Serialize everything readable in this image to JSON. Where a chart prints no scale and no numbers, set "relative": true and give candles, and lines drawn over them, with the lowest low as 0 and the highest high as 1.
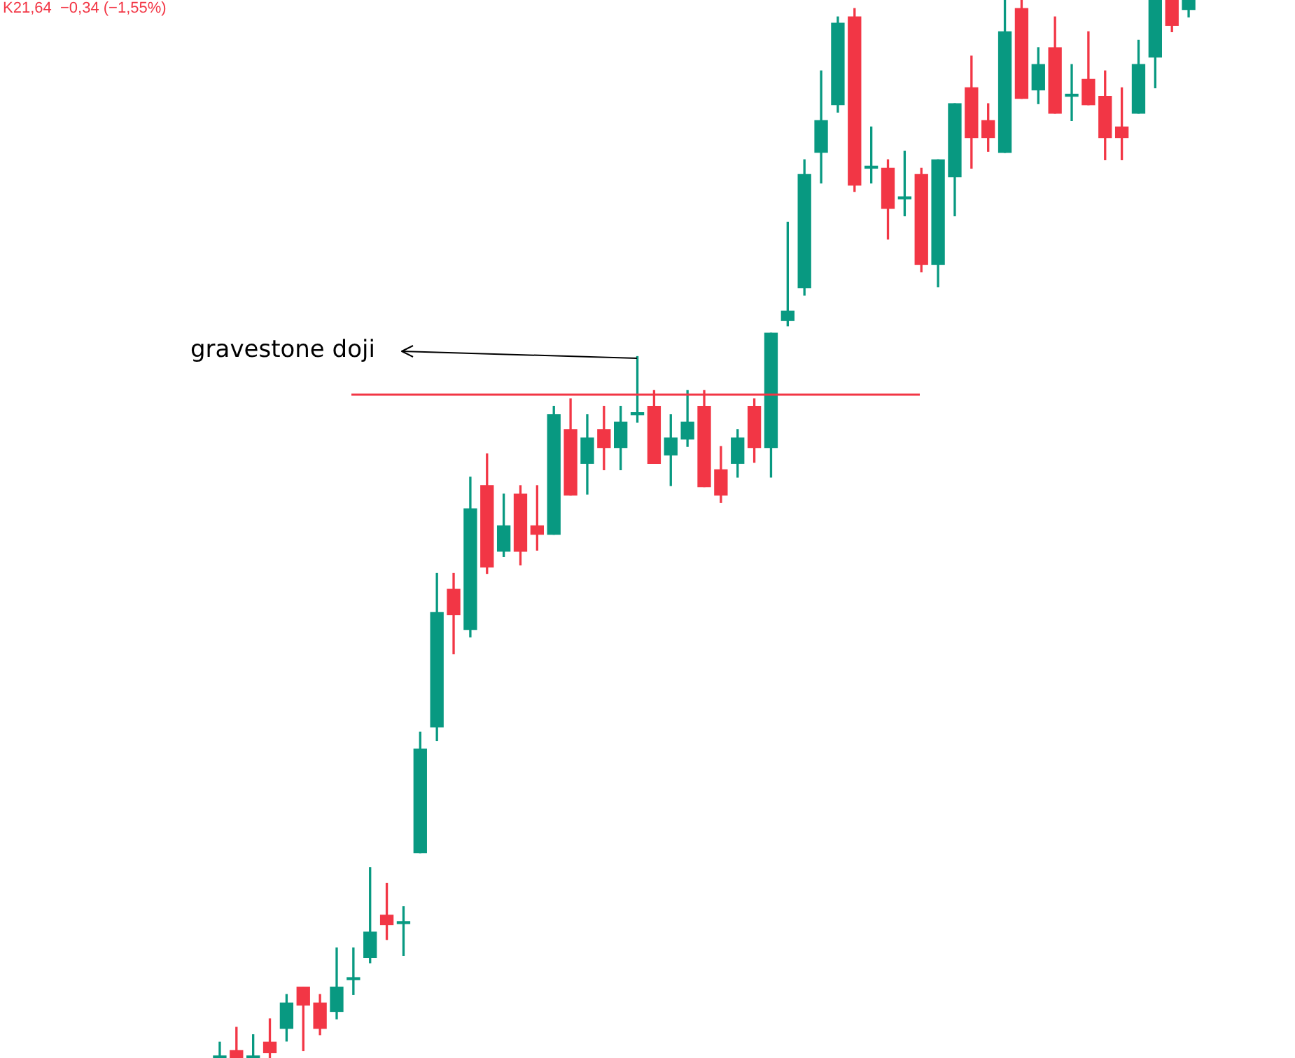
{
  "chart_data": {
    "type": "candlestick",
    "relative": true,
    "categories": [
      null,
      null,
      null,
      null,
      null,
      null,
      null,
      null,
      null,
      null,
      null,
      null,
      null,
      null,
      null,
      null,
      null,
      null,
      null,
      null,
      null,
      null,
      null,
      null,
      null,
      null,
      null,
      null,
      null,
      null,
      null,
      null,
      null,
      null,
      null,
      null,
      null,
      null,
      null,
      null,
      null,
      null,
      null,
      null,
      null,
      null,
      null,
      null,
      null,
      null,
      null,
      null,
      null,
      null,
      null,
      null,
      null,
      null,
      null
    ],
    "ohlc": [
      [
        0,
        0.015,
        0,
        0
      ],
      [
        0.007,
        0.029,
        0,
        0
      ],
      [
        0,
        0.022,
        0,
        0
      ],
      [
        0.015,
        0.037,
        0,
        0.005
      ],
      [
        0.028,
        0.06,
        0.016,
        0.052
      ],
      [
        0.067,
        0.067,
        0.007,
        0.05
      ],
      [
        0.052,
        0.06,
        0.022,
        0.028
      ],
      [
        0.044,
        0.104,
        0.037,
        0.067
      ],
      [
        0.074,
        0.104,
        0.06,
        0.074
      ],
      [
        0.095,
        0.18,
        0.09,
        0.119
      ],
      [
        0.135,
        0.165,
        0.112,
        0.126
      ],
      [
        0.127,
        0.143,
        0.097,
        0.127
      ],
      [
        0.194,
        0.308,
        0.194,
        0.292
      ],
      [
        0.313,
        0.458,
        0.3,
        0.421
      ],
      [
        0.443,
        0.458,
        0.382,
        0.419
      ],
      [
        0.405,
        0.549,
        0.398,
        0.519
      ],
      [
        0.541,
        0.571,
        0.458,
        0.464
      ],
      [
        0.479,
        0.533,
        0.474,
        0.503
      ],
      [
        0.533,
        0.541,
        0.466,
        0.479
      ],
      [
        0.503,
        0.541,
        0.48,
        0.495
      ],
      [
        0.495,
        0.616,
        0.495,
        0.608
      ],
      [
        0.594,
        0.623,
        0.532,
        0.532
      ],
      [
        0.562,
        0.608,
        0.533,
        0.586
      ],
      [
        0.594,
        0.616,
        0.556,
        0.577
      ],
      [
        0.577,
        0.616,
        0.556,
        0.601
      ],
      [
        0.608,
        0.663,
        0.601,
        0.608
      ],
      [
        0.616,
        0.631,
        0.562,
        0.562
      ],
      [
        0.57,
        0.608,
        0.541,
        0.586
      ],
      [
        0.585,
        0.631,
        0.578,
        0.601
      ],
      [
        0.616,
        0.631,
        0.54,
        0.54
      ],
      [
        0.556,
        0.578,
        0.525,
        0.532
      ],
      [
        0.562,
        0.594,
        0.549,
        0.586
      ],
      [
        0.616,
        0.623,
        0.563,
        0.577
      ],
      [
        0.577,
        0.685,
        0.549,
        0.685
      ],
      [
        0.697,
        0.79,
        0.692,
        0.706
      ],
      [
        0.728,
        0.849,
        0.721,
        0.835
      ],
      [
        0.856,
        0.933,
        0.827,
        0.886
      ],
      [
        0.901,
        0.984,
        0.894,
        0.978
      ],
      [
        0.984,
        0.992,
        0.819,
        0.825
      ],
      [
        0.841,
        0.88,
        0.827,
        0.841
      ],
      [
        0.841,
        0.849,
        0.774,
        0.803
      ],
      [
        0.812,
        0.857,
        0.796,
        0.812
      ],
      [
        0.835,
        0.841,
        0.743,
        0.75
      ],
      [
        0.75,
        0.849,
        0.729,
        0.849
      ],
      [
        0.833,
        0.902,
        0.796,
        0.902
      ],
      [
        0.917,
        0.947,
        0.841,
        0.87
      ],
      [
        0.886,
        0.902,
        0.857,
        0.87
      ],
      [
        0.856,
        1,
        0.856,
        0.97
      ],
      [
        0.992,
        1,
        0.907,
        0.907
      ],
      [
        0.915,
        0.955,
        0.902,
        0.939
      ],
      [
        0.955,
        0.984,
        0.893,
        0.893
      ],
      [
        0.909,
        0.939,
        0.886,
        0.909
      ],
      [
        0.925,
        0.97,
        0.901,
        0.901
      ],
      [
        0.909,
        0.933,
        0.849,
        0.87
      ],
      [
        0.88,
        0.917,
        0.849,
        0.87
      ],
      [
        0.893,
        0.962,
        0.893,
        0.939
      ],
      [
        0.946,
        1,
        0.917,
        1
      ],
      [
        1,
        1,
        0.97,
        0.976
      ],
      [
        0.991,
        1,
        0.984,
        1
      ]
    ],
    "colors": [
      "#089981",
      "#f23645",
      "#089981",
      "#f23645",
      "#089981",
      "#f23645",
      "#f23645",
      "#089981",
      "#089981",
      "#089981",
      "#f23645",
      "#089981",
      "#089981",
      "#089981",
      "#f23645",
      "#089981",
      "#f23645",
      "#089981",
      "#f23645",
      "#f23645",
      "#089981",
      "#f23645",
      "#089981",
      "#f23645",
      "#089981",
      "#089981",
      "#f23645",
      "#089981",
      "#089981",
      "#f23645",
      "#f23645",
      "#089981",
      "#f23645",
      "#089981",
      "#089981",
      "#089981",
      "#089981",
      "#089981",
      "#f23645",
      "#089981",
      "#f23645",
      "#089981",
      "#f23645",
      "#089981",
      "#089981",
      "#f23645",
      "#f23645",
      "#089981",
      "#f23645",
      "#089981",
      "#f23645",
      "#089981",
      "#f23645",
      "#f23645",
      "#f23645",
      "#089981",
      "#089981",
      "#f23645",
      "#089981"
    ],
    "ref_lines": [
      {
        "axis": "y",
        "value": 0.627,
        "color": "#f23645"
      }
    ],
    "annotations": [
      "K21,64  −0,34 (−1,55%)",
      "gravestone doji"
    ]
  }
}
